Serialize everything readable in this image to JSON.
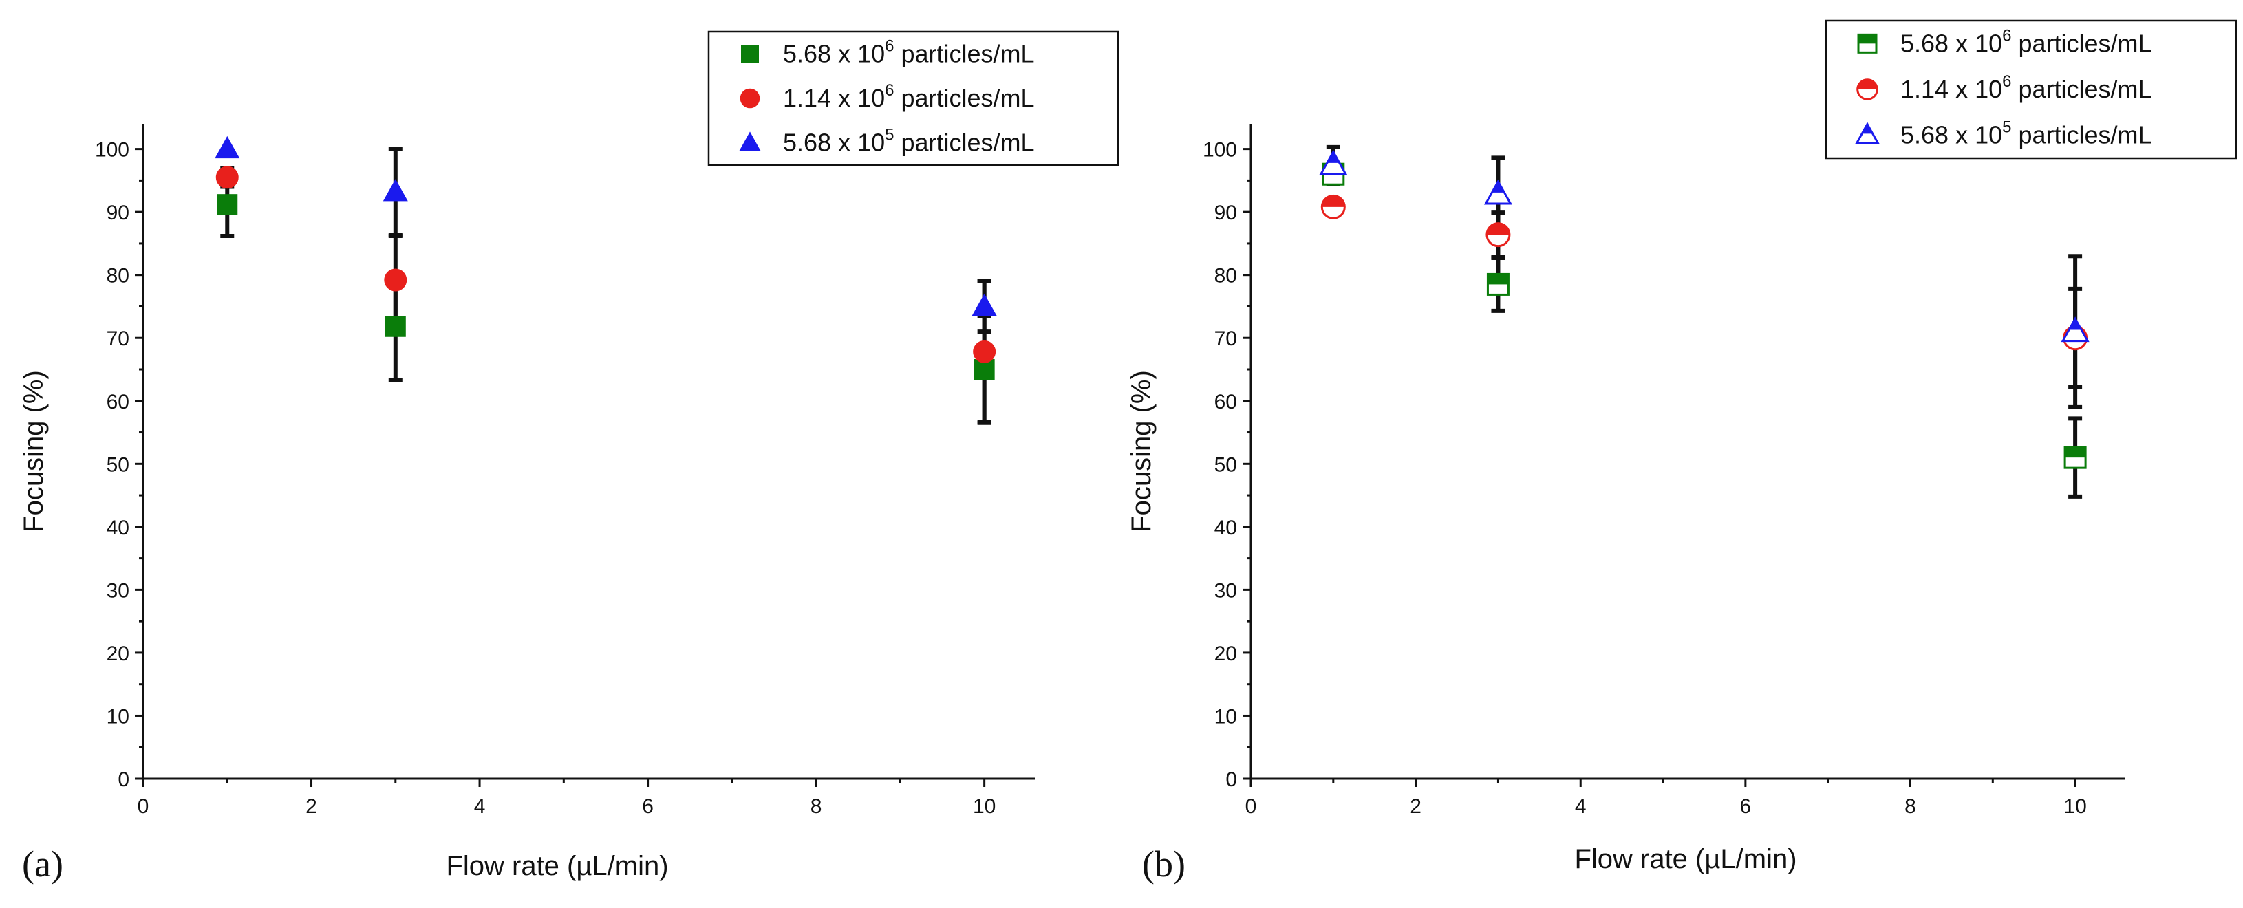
{
  "chart_data": [
    {
      "panel": "(a)",
      "type": "scatter",
      "xlabel": "Flow rate (µL/min)",
      "ylabel": "Focusing (%)",
      "xlim": [
        0,
        10.6
      ],
      "ylim": [
        0,
        104
      ],
      "xticks": [
        0,
        2,
        4,
        6,
        8,
        10
      ],
      "yticks": [
        0,
        10,
        20,
        30,
        40,
        50,
        60,
        70,
        80,
        90,
        100
      ],
      "legend_position": "top-right",
      "marker_fill": "solid",
      "series": [
        {
          "name": "5.68 x 10^6 particles/mL",
          "label_base": "5.68 x 10",
          "label_exp": "6",
          "label_unit": "particles/mL",
          "marker": "square",
          "color": "#0a7d0a",
          "x": [
            1,
            3,
            10
          ],
          "y": [
            91.2,
            71.8,
            65.0
          ],
          "err": [
            5.0,
            8.5,
            8.5
          ]
        },
        {
          "name": "1.14 x 10^6 particles/mL",
          "label_base": "1.14 x 10",
          "label_exp": "6",
          "label_unit": "particles/mL",
          "marker": "circle",
          "color": "#e8201c",
          "x": [
            1,
            3,
            10
          ],
          "y": [
            95.5,
            79.2,
            67.8
          ],
          "err": [
            1.5,
            7.0,
            11.2
          ]
        },
        {
          "name": "5.68 x 10^5 particles/mL",
          "label_base": "5.68 x 10",
          "label_exp": "5",
          "label_unit": "particles/mL",
          "marker": "triangle",
          "color": "#1a1aee",
          "x": [
            1,
            3,
            10
          ],
          "y": [
            100.0,
            93.2,
            75.0
          ],
          "err": [
            0.0,
            6.8,
            4.0
          ]
        }
      ]
    },
    {
      "panel": "(b)",
      "type": "scatter",
      "xlabel": "Flow rate (µL/min)",
      "ylabel": "Focusing (%)",
      "xlim": [
        0,
        10.6
      ],
      "ylim": [
        0,
        104
      ],
      "xticks": [
        0,
        2,
        4,
        6,
        8,
        10
      ],
      "yticks": [
        0,
        10,
        20,
        30,
        40,
        50,
        60,
        70,
        80,
        90,
        100
      ],
      "legend_position": "top-right",
      "marker_fill": "half",
      "series": [
        {
          "name": "5.68 x 10^6 particles/mL",
          "label_base": "5.68 x 10",
          "label_exp": "6",
          "label_unit": "particles/mL",
          "marker": "square",
          "color": "#0a7d0a",
          "x": [
            1,
            3,
            10
          ],
          "y": [
            96.0,
            78.5,
            51.0
          ],
          "err": [
            1.5,
            4.2,
            6.2
          ]
        },
        {
          "name": "1.14 x 10^6 particles/mL",
          "label_base": "1.14 x 10",
          "label_exp": "6",
          "label_unit": "particles/mL",
          "marker": "circle",
          "color": "#e8201c",
          "x": [
            1,
            3,
            10
          ],
          "y": [
            90.8,
            86.4,
            70.0
          ],
          "err": [
            1.0,
            3.5,
            7.8
          ]
        },
        {
          "name": "5.68 x 10^5 particles/mL",
          "label_base": "5.68 x 10",
          "label_exp": "5",
          "label_unit": "particles/mL",
          "marker": "triangle",
          "color": "#1a1aee",
          "x": [
            1,
            3,
            10
          ],
          "y": [
            97.5,
            92.8,
            71.0
          ],
          "err": [
            2.8,
            5.8,
            12.0
          ]
        }
      ]
    }
  ]
}
